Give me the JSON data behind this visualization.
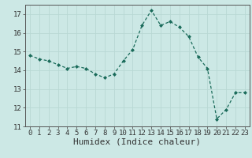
{
  "x": [
    0,
    1,
    2,
    3,
    4,
    5,
    6,
    7,
    8,
    9,
    10,
    11,
    12,
    13,
    14,
    15,
    16,
    17,
    18,
    19,
    20,
    21,
    22,
    23
  ],
  "y": [
    14.8,
    14.6,
    14.5,
    14.3,
    14.1,
    14.2,
    14.1,
    13.8,
    13.6,
    13.8,
    14.5,
    15.1,
    16.4,
    17.2,
    16.4,
    16.6,
    16.3,
    15.8,
    14.7,
    14.1,
    11.4,
    11.9,
    12.8,
    12.8
  ],
  "xlabel": "Humidex (Indice chaleur)",
  "xlim": [
    -0.5,
    23.5
  ],
  "ylim": [
    11,
    17.5
  ],
  "yticks": [
    11,
    12,
    13,
    14,
    15,
    16,
    17
  ],
  "xticks": [
    0,
    1,
    2,
    3,
    4,
    5,
    6,
    7,
    8,
    9,
    10,
    11,
    12,
    13,
    14,
    15,
    16,
    17,
    18,
    19,
    20,
    21,
    22,
    23
  ],
  "line_color": "#1a6b5a",
  "marker_color": "#1a6b5a",
  "bg_color": "#cce8e5",
  "grid_color": "#b8d8d4",
  "tick_label_fontsize": 6.5,
  "xlabel_fontsize": 8.0
}
